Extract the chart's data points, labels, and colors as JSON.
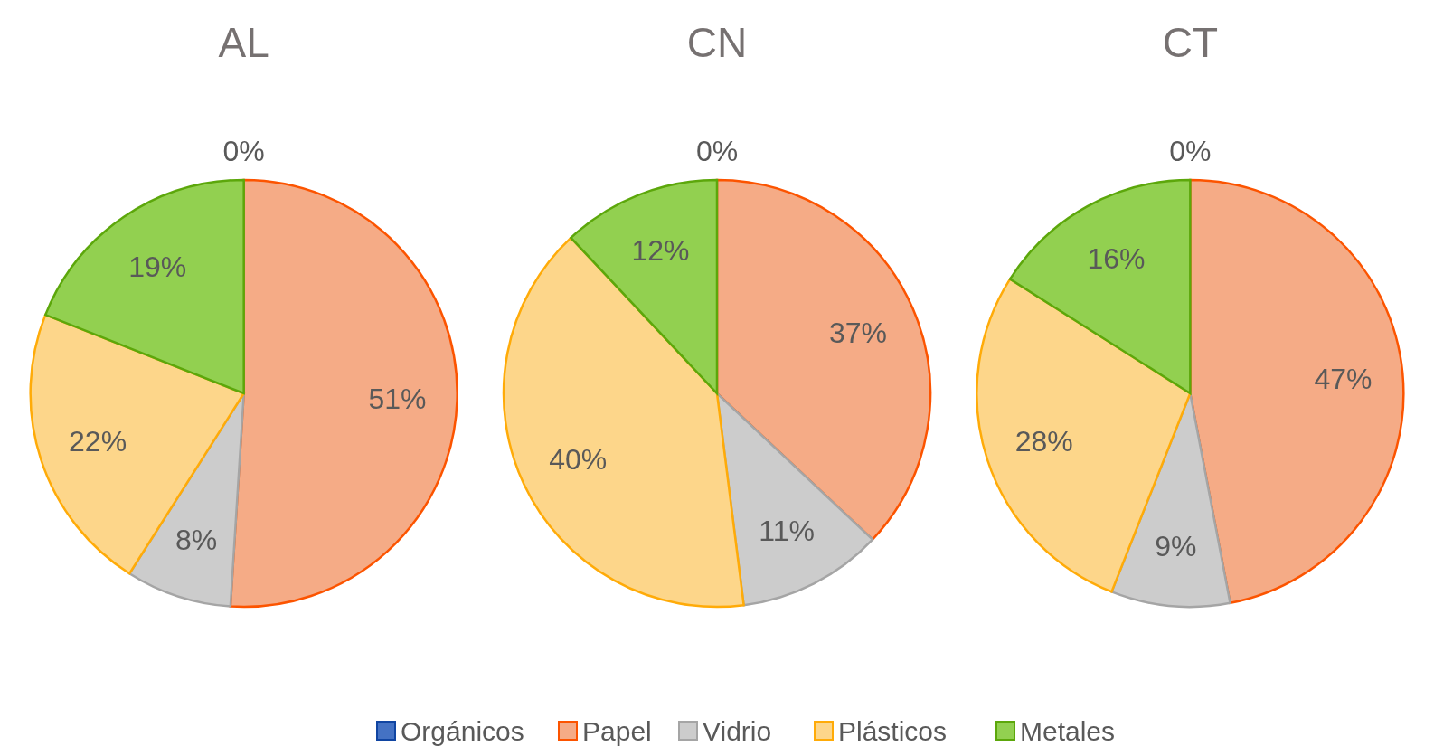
{
  "chart_data": [
    {
      "type": "pie",
      "title": "AL",
      "categories": [
        "Orgánicos",
        "Papel",
        "Vidrio",
        "Plásticos",
        "Metales"
      ],
      "values": [
        0,
        51,
        8,
        22,
        19
      ],
      "colors": [
        "#4472c4",
        "#f5ab86",
        "#cccccc",
        "#fdd68a",
        "#92d050"
      ],
      "value_labels": [
        "0%",
        "51%",
        "8%",
        "22%",
        "19%"
      ],
      "legend": "bottom"
    },
    {
      "type": "pie",
      "title": "CN",
      "categories": [
        null,
        null,
        null,
        null,
        null
      ],
      "values": [
        0,
        37,
        11,
        40,
        12
      ],
      "colors": [
        "#4472c4",
        "#f5ab86",
        "#cccccc",
        "#fdd68a",
        "#92d050"
      ],
      "value_labels": [
        "0%",
        "37%",
        "11%",
        "40%",
        "12%"
      ]
    },
    {
      "type": "pie",
      "title": "CT",
      "categories": [
        null,
        null,
        null,
        null,
        null
      ],
      "values": [
        0,
        47,
        9,
        28,
        16
      ],
      "colors": [
        "#4472c4",
        "#f5ab86",
        "#cccccc",
        "#fdd68a",
        "#92d050"
      ],
      "value_labels": [
        "0%",
        "47%",
        "9%",
        "28%",
        "16%"
      ]
    }
  ]
}
